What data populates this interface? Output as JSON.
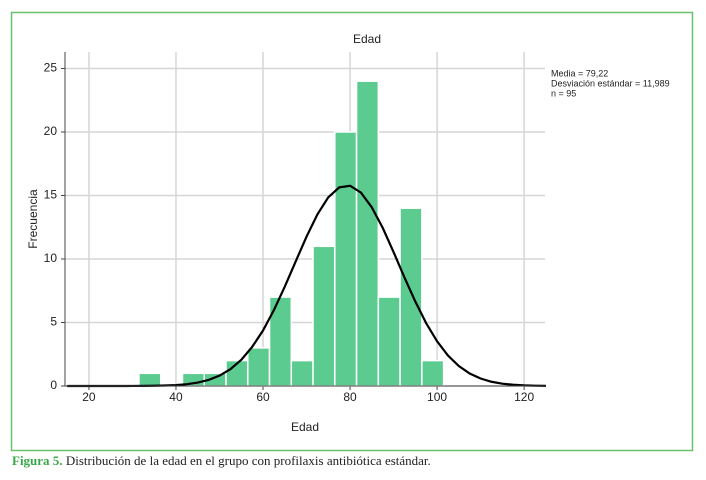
{
  "chart_data": {
    "type": "histogram",
    "title": "Edad",
    "x_label": "Edad",
    "y_label": "Frecuencia",
    "bins": [
      31.5,
      36.5,
      41.5,
      46.5,
      51.5,
      56.5,
      61.5,
      66.5,
      71.5,
      76.5,
      81.5,
      86.5,
      91.5,
      96.5,
      101.5
    ],
    "values": [
      1,
      0,
      1,
      1,
      2,
      3,
      7,
      2,
      11,
      20,
      24,
      7,
      14,
      2
    ],
    "color": "#5ccb8f",
    "curve": {
      "color": "#000000",
      "x": [
        15,
        17.5,
        20,
        22.5,
        25,
        27.5,
        30,
        32.5,
        35,
        37.5,
        40,
        42.5,
        45,
        47.5,
        50,
        52.5,
        55,
        57.5,
        60,
        62.5,
        65,
        67.5,
        70,
        72.5,
        75,
        77.5,
        80,
        82.5,
        85,
        87.5,
        90,
        92.5,
        95,
        97.5,
        100,
        102.5,
        105,
        107.5,
        110,
        112.5,
        115,
        117.5,
        120,
        122.5,
        125
      ],
      "y": [
        0,
        0,
        0.0001,
        0.0002,
        0.0006,
        0.0014,
        0.0035,
        0.008,
        0.0176,
        0.037,
        0.075,
        0.145,
        0.269,
        0.477,
        0.812,
        1.319,
        2.057,
        3.077,
        4.37,
        5.97,
        7.82,
        9.8,
        11.76,
        13.51,
        14.86,
        15.64,
        15.77,
        15.23,
        14.07,
        12.46,
        10.55,
        8.55,
        6.65,
        4.94,
        3.52,
        2.4,
        1.57,
        0.98,
        0.59,
        0.335,
        0.184,
        0.097,
        0.049,
        0.023,
        0.011
      ]
    },
    "xlim": [
      14.5,
      124.8
    ],
    "xticks": [
      20,
      40,
      60,
      80,
      100,
      120
    ],
    "ylim": [
      0,
      26.3
    ],
    "yticks": [
      0,
      5,
      10,
      15,
      20,
      25
    ],
    "grid": true,
    "annotations": [
      "Media = 79,22",
      "Desviación estándar = 11,989",
      "n = 95"
    ]
  },
  "caption": {
    "label": "Figura 5.",
    "text": "Distribución de la edad en el grupo con profilaxis antibiótica estándar."
  }
}
